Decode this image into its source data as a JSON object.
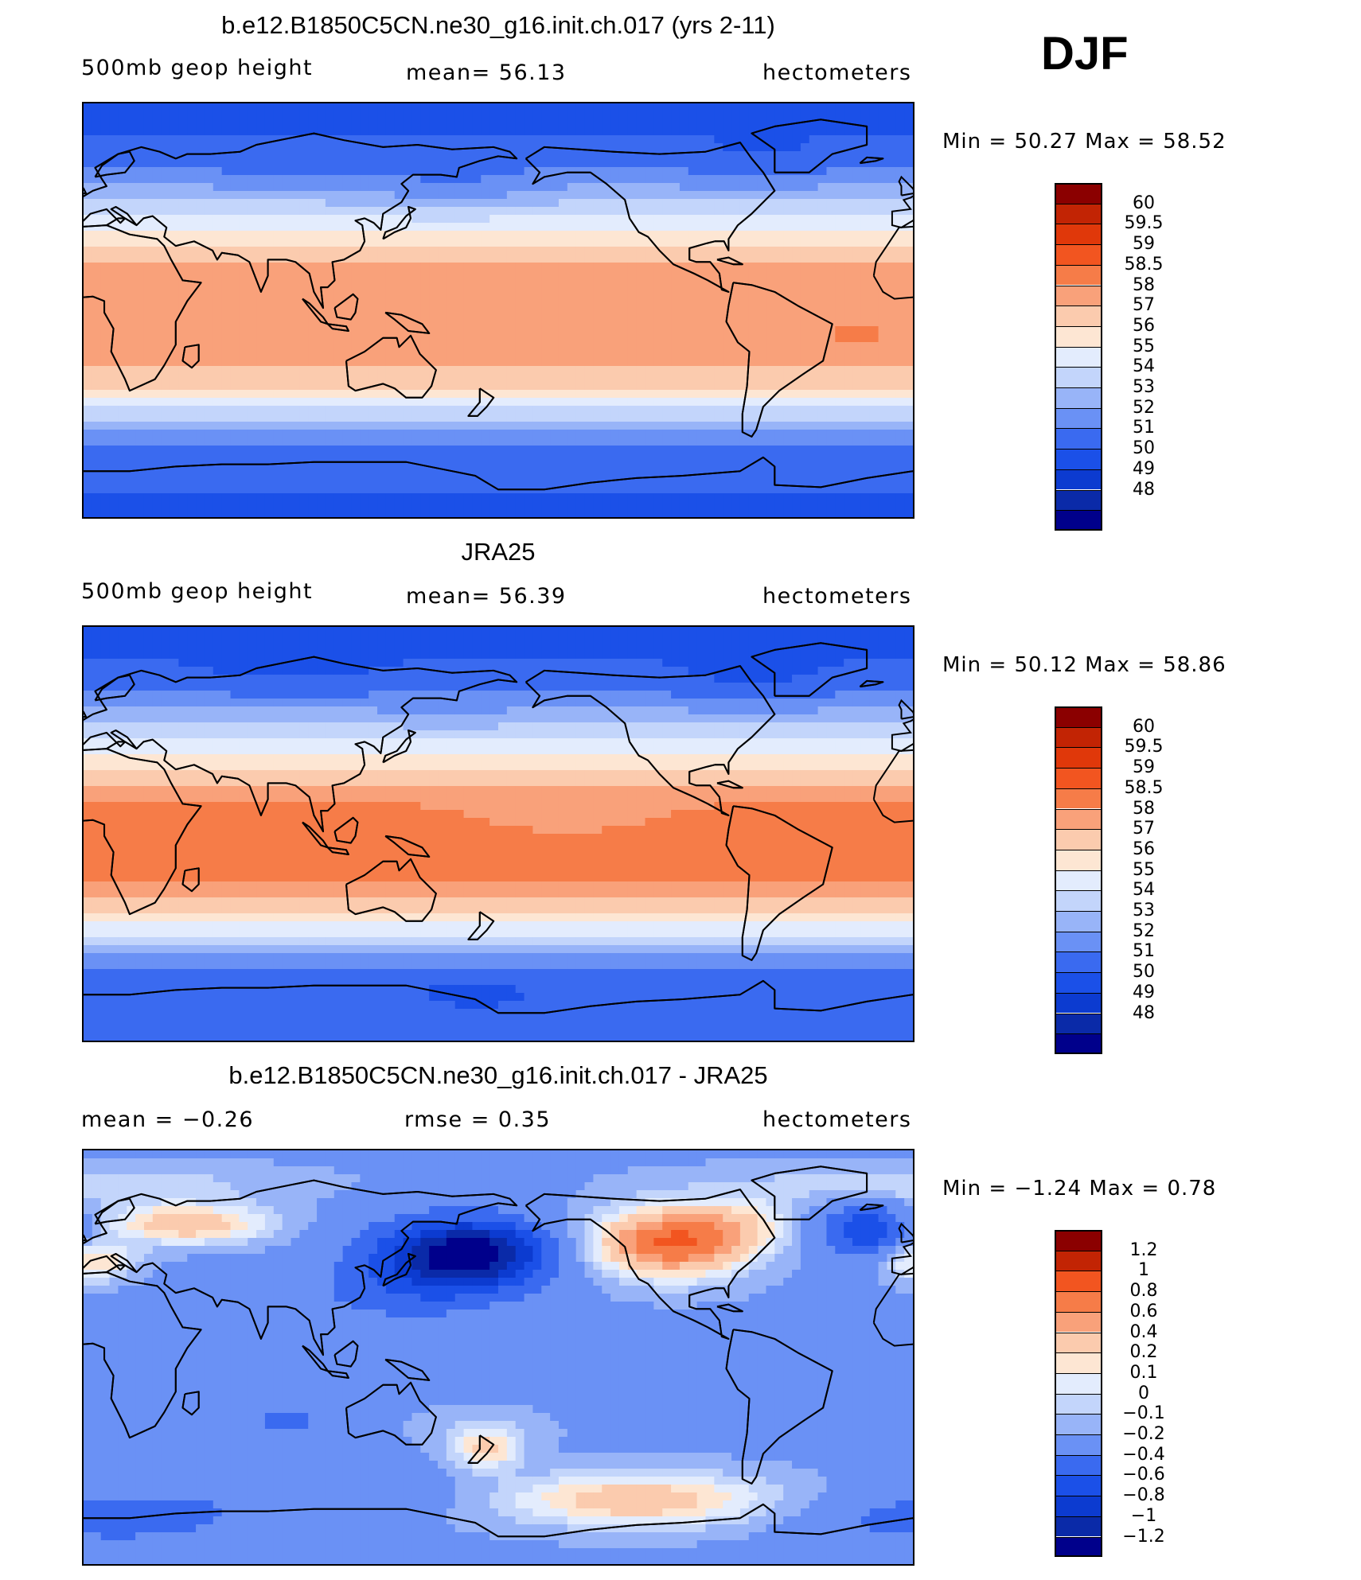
{
  "season": "DJF",
  "colors": {
    "abs": [
      "#00008b",
      "#0a2aa8",
      "#0c3bd0",
      "#1b50e8",
      "#3a6af0",
      "#6a91f5",
      "#98b4f8",
      "#c3d5fb",
      "#e3ecfd",
      "#fde6d3",
      "#fbcbae",
      "#f9a17a",
      "#f67c48",
      "#f25520",
      "#e0380a",
      "#c22404",
      "#8b0000"
    ],
    "diff": [
      "#00008b",
      "#0a2aa8",
      "#0c3bd0",
      "#1b50e8",
      "#3a6af0",
      "#6a91f5",
      "#98b4f8",
      "#c3d5fb",
      "#e3ecfd",
      "#fde6d3",
      "#fbcbae",
      "#f9a17a",
      "#f67c48",
      "#f25520",
      "#c22404",
      "#8b0000"
    ]
  },
  "panels": [
    {
      "title": "b.e12.B1850C5CN.ne30_g16.init.ch.017 (yrs 2-11)",
      "left_text": "500mb  geop  height",
      "mid_text": "mean=   56.13",
      "right_text": "hectometers",
      "minmax": "Min  =    50.27  Max  =    58.52"
    },
    {
      "title": "JRA25",
      "left_text": "500mb  geop  height",
      "mid_text": "mean=   56.39",
      "right_text": "hectometers",
      "minmax": "Min  =    50.12  Max  =    58.86"
    },
    {
      "title": "b.e12.B1850C5CN.ne30_g16.init.ch.017 - JRA25",
      "left_text": "mean  =    −0.26",
      "mid_text": "rmse  =     0.35",
      "right_text": "hectometers",
      "minmax": "Min  =   −1.24  Max  =     0.78"
    }
  ],
  "chart_data": [
    {
      "type": "heatmap",
      "title": "b.e12.B1850C5CN.ne30_g16.init.ch.017 (yrs 2-11)",
      "variable": "500mb geop height",
      "units": "hectometers",
      "mean": 56.13,
      "min": 50.27,
      "max": 58.52,
      "colorbar_levels": [
        "60",
        "59.5",
        "59",
        "58.5",
        "58",
        "57",
        "56",
        "55",
        "54",
        "53",
        "52",
        "51",
        "50",
        "49",
        "48"
      ],
      "zonal_profile": {
        "lat": [
          90,
          80,
          70,
          60,
          50,
          40,
          30,
          20,
          10,
          0,
          -10,
          -20,
          -30,
          -40,
          -50,
          -60,
          -70,
          -80,
          -90
        ],
        "value": [
          50.4,
          50.9,
          51.3,
          52.3,
          53.6,
          55.2,
          56.7,
          58.2,
          58.4,
          58.4,
          58.4,
          58.3,
          57.6,
          55.6,
          53.4,
          51.7,
          51.3,
          51.0,
          50.8
        ]
      }
    },
    {
      "type": "heatmap",
      "title": "JRA25",
      "variable": "500mb geop height",
      "units": "hectometers",
      "mean": 56.39,
      "min": 50.12,
      "max": 58.86,
      "colorbar_levels": [
        "60",
        "59.5",
        "59",
        "58.5",
        "58",
        "57",
        "56",
        "55",
        "54",
        "53",
        "52",
        "51",
        "50",
        "49",
        "48"
      ],
      "zonal_profile": {
        "lat": [
          90,
          80,
          70,
          60,
          50,
          40,
          30,
          20,
          10,
          0,
          -10,
          -20,
          -30,
          -40,
          -50,
          -60,
          -70,
          -80,
          -90
        ],
        "value": [
          50.3,
          50.8,
          51.3,
          52.4,
          53.8,
          55.4,
          56.9,
          58.3,
          58.6,
          58.7,
          58.7,
          58.6,
          57.9,
          55.9,
          53.6,
          51.8,
          51.4,
          51.2,
          51.1
        ]
      }
    },
    {
      "type": "heatmap",
      "title": "b.e12.B1850C5CN.ne30_g16.init.ch.017 - JRA25",
      "units": "hectometers",
      "mean": -0.26,
      "rmse": 0.35,
      "min": -1.24,
      "max": 0.78,
      "colorbar_levels": [
        "1.2",
        "1",
        "0.8",
        "0.6",
        "0.4",
        "0.2",
        "0.1",
        "0",
        "−0.1",
        "−0.2",
        "−0.4",
        "−0.6",
        "−0.8",
        "−1",
        "−1.2"
      ]
    }
  ]
}
